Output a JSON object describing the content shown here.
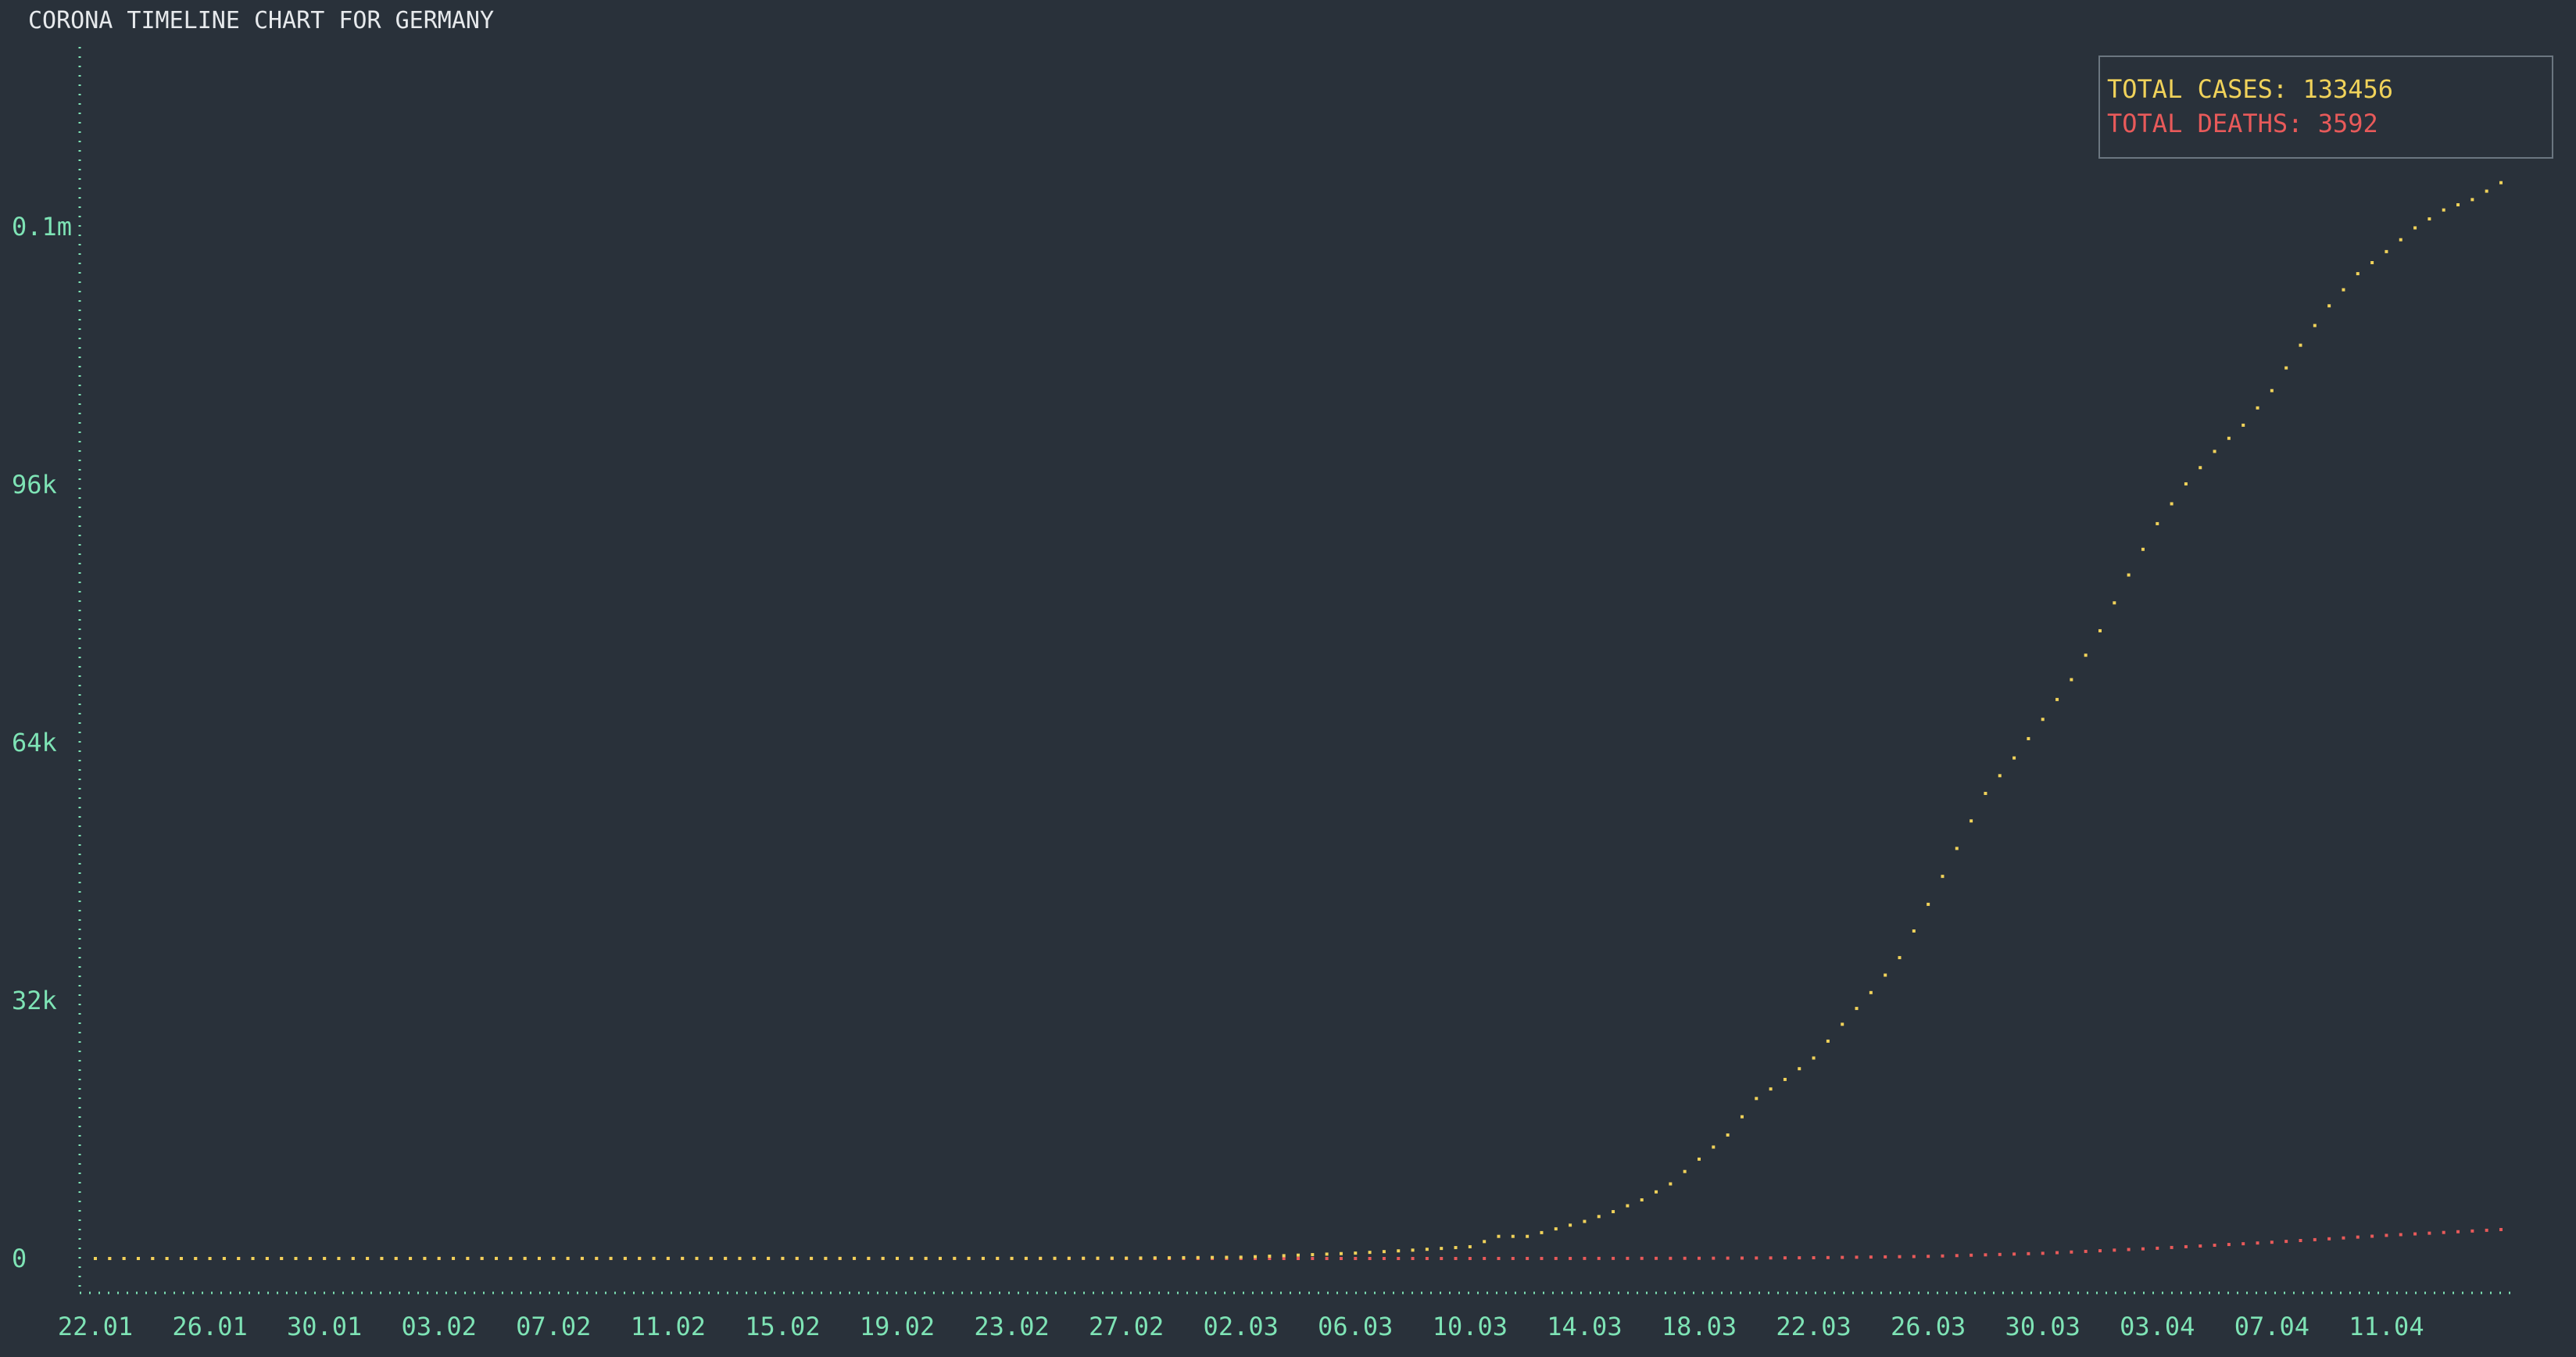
{
  "colors": {
    "background": "#29313a",
    "axis": "#7ee3b5",
    "title": "#e6e9ec",
    "cases": "#f0d25a",
    "deaths": "#e85a5a",
    "legend_border": "#6b7680"
  },
  "chart_data": {
    "type": "line",
    "title": "CORONA TIMELINE CHART FOR GERMANY",
    "xlabel": "",
    "ylabel": "",
    "x_tick_labels": [
      "22.01",
      "26.01",
      "30.01",
      "03.02",
      "07.02",
      "11.02",
      "15.02",
      "19.02",
      "23.02",
      "27.02",
      "02.03",
      "06.03",
      "10.03",
      "14.03",
      "18.03",
      "22.03",
      "26.03",
      "30.03",
      "03.04",
      "07.04",
      "11.04"
    ],
    "y_tick_labels": [
      "0",
      "32k",
      "64k",
      "96k",
      "0.1m"
    ],
    "y_tick_values": [
      0,
      32000,
      64000,
      96000,
      128000
    ],
    "ylim": [
      -3000,
      156000
    ],
    "legend": {
      "placement": "top-right",
      "cases_label": "TOTAL CASES: 133456",
      "deaths_label": "TOTAL DEATHS: 3592"
    },
    "series": [
      {
        "key": "cases",
        "points": [
          [
            "22.01",
            0
          ],
          [
            "26.01",
            0
          ],
          [
            "30.01",
            5
          ],
          [
            "03.02",
            12
          ],
          [
            "07.02",
            14
          ],
          [
            "11.02",
            16
          ],
          [
            "15.02",
            16
          ],
          [
            "19.02",
            16
          ],
          [
            "23.02",
            16
          ],
          [
            "27.02",
            46
          ],
          [
            "02.03",
            159
          ],
          [
            "06.03",
            670
          ],
          [
            "08.03",
            1040
          ],
          [
            "10.03",
            1457
          ],
          [
            "11.03",
            2745
          ],
          [
            "12.03",
            2745
          ],
          [
            "13.03",
            3675
          ],
          [
            "14.03",
            4599
          ],
          [
            "15.03",
            5813
          ],
          [
            "16.03",
            7272
          ],
          [
            "17.03",
            9257
          ],
          [
            "18.03",
            12327
          ],
          [
            "19.03",
            15320
          ],
          [
            "20.03",
            19848
          ],
          [
            "21.03",
            22213
          ],
          [
            "22.03",
            24873
          ],
          [
            "23.03",
            29056
          ],
          [
            "24.03",
            32986
          ],
          [
            "25.03",
            37323
          ],
          [
            "26.03",
            43938
          ],
          [
            "27.03",
            50871
          ],
          [
            "28.03",
            57695
          ],
          [
            "29.03",
            62095
          ],
          [
            "30.03",
            66885
          ],
          [
            "31.03",
            71808
          ],
          [
            "01.04",
            77872
          ],
          [
            "02.04",
            84794
          ],
          [
            "03.04",
            91159
          ],
          [
            "04.04",
            96092
          ],
          [
            "05.04",
            100123
          ],
          [
            "06.04",
            103374
          ],
          [
            "07.04",
            107663
          ],
          [
            "08.04",
            113296
          ],
          [
            "09.04",
            118181
          ],
          [
            "10.04",
            122171
          ],
          [
            "11.04",
            124908
          ],
          [
            "12.04",
            127854
          ],
          [
            "13.04",
            130072
          ],
          [
            "14.04",
            131359
          ],
          [
            "15.04",
            133456
          ]
        ]
      },
      {
        "key": "deaths",
        "points": [
          [
            "22.01",
            0
          ],
          [
            "26.01",
            0
          ],
          [
            "06.03",
            0
          ],
          [
            "08.03",
            0
          ],
          [
            "10.03",
            2
          ],
          [
            "14.03",
            9
          ],
          [
            "18.03",
            28
          ],
          [
            "22.03",
            94
          ],
          [
            "26.03",
            267
          ],
          [
            "30.03",
            645
          ],
          [
            "03.04",
            1275
          ],
          [
            "07.04",
            2016
          ],
          [
            "11.04",
            2871
          ],
          [
            "15.04",
            3592
          ]
        ]
      }
    ]
  }
}
